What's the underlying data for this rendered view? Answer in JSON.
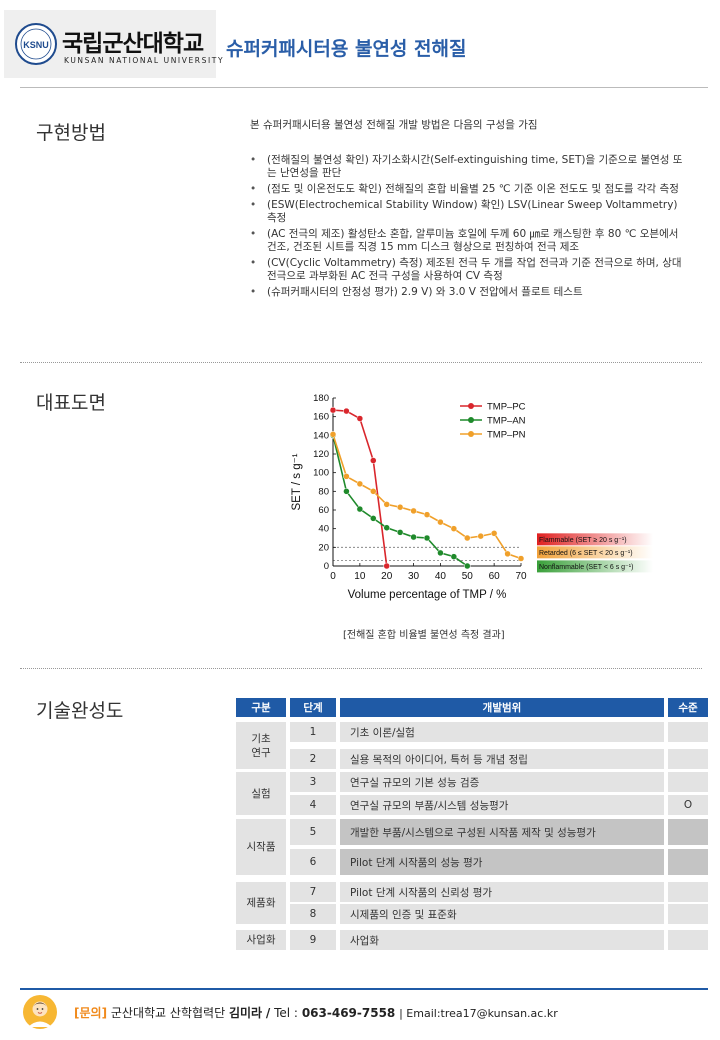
{
  "header": {
    "logo_kr": "국립군산대학교",
    "logo_en": "KUNSAN NATIONAL UNIVERSITY",
    "logo_mark": "KSNU",
    "title": "슈퍼커패시터용 불연성 전해질"
  },
  "method": {
    "label": "구현방법",
    "intro": "본 슈퍼커패시터용 불연성 전해질 개발 방법은 다음의 구성을 가짐",
    "bullets": [
      "(전해질의 불연성 확인) 자기소화시간(Self-extinguishing time, SET)을 기준으로 불연성 또는 난연성을 판단",
      "(점도 및 이온전도도 확인) 전해질의 혼합 비율별 25 ℃ 기준 이온 전도도 및 점도를 각각 측정",
      "(ESW(Electrochemical Stability Window) 확인) LSV(Linear Sweep Voltammetry) 측정",
      "(AC 전극의 제조) 활성탄소 혼합, 알루미늄 호일에 두께 60 ㎛로 캐스팅한 후 80 ℃ 오븐에서 건조, 건조된 시트를 직경 15 mm 디스크 형상으로 펀칭하여 전극 제조",
      "(CV(Cyclic Voltammetry) 측정) 제조된 전극 두 개를 작업 전극과 기준 전극으로 하며, 상대 전극으로 과부화된 AC 전극 구성을 사용하여 CV 측정",
      "(슈퍼커패시터의 안정성 평가) 2.9 V) 와 3.0 V 전압에서 플로트 테스트"
    ]
  },
  "figure": {
    "label": "대표도면",
    "caption": "[전해질 혼합 비율별 불연성 측정 결과]"
  },
  "chart_data": {
    "type": "line",
    "xlabel": "Volume percentage of TMP / %",
    "ylabel": "SET / s g⁻¹",
    "xlim": [
      0,
      70
    ],
    "ylim": [
      0,
      180
    ],
    "xticks": [
      "0",
      "10",
      "20",
      "30",
      "40",
      "50",
      "60",
      "70"
    ],
    "yticks": [
      "0",
      "20",
      "40",
      "60",
      "80",
      "100",
      "120",
      "140",
      "160",
      "180"
    ],
    "legend_position": "top-right",
    "series": [
      {
        "name": "TMP–PC",
        "color": "#d9262c",
        "x": [
          0,
          5,
          10,
          15,
          20
        ],
        "y": [
          167,
          166,
          158,
          113,
          0
        ]
      },
      {
        "name": "TMP–AN",
        "color": "#1f8a2b",
        "x": [
          0,
          5,
          10,
          15,
          20,
          25,
          30,
          35,
          40,
          45,
          50
        ],
        "y": [
          140,
          80,
          61,
          51,
          41,
          36,
          31,
          30,
          14,
          10,
          0
        ]
      },
      {
        "name": "TMP–PN",
        "color": "#f0a02a",
        "x": [
          0,
          5,
          10,
          15,
          20,
          25,
          30,
          35,
          40,
          45,
          50,
          55,
          60,
          65,
          70
        ],
        "y": [
          141,
          96,
          88,
          80,
          66,
          63,
          59,
          55,
          47,
          40,
          30,
          32,
          35,
          13,
          8
        ]
      }
    ],
    "thresholds": [
      20,
      6
    ],
    "bands": [
      {
        "label": "Flammable (SET ≥ 20 s g⁻¹)",
        "color": "#e02020"
      },
      {
        "label": "Retarded (6 ≤ SET < 20 s g⁻¹)",
        "color": "#f2a23a"
      },
      {
        "label": "Nonflammable (SET < 6 s g⁻¹)",
        "color": "#3aa03a"
      }
    ]
  },
  "maturity": {
    "label": "기술완성도",
    "headers": [
      "구분",
      "단계",
      "개발범위",
      "수준"
    ],
    "groups": [
      {
        "name": "기초\n연구",
        "rows": [
          0,
          1
        ]
      },
      {
        "name": "실험",
        "rows": [
          2,
          3
        ]
      },
      {
        "name": "시작품",
        "rows": [
          4,
          5
        ]
      },
      {
        "name": "제품화",
        "rows": [
          6,
          7
        ]
      },
      {
        "name": "사업화",
        "rows": [
          8
        ]
      }
    ],
    "rows": [
      {
        "step": "1",
        "desc": "기초 이론/실험",
        "level": ""
      },
      {
        "step": "2",
        "desc": "실용 목적의 아이디어, 특허 등 개념 정립",
        "level": ""
      },
      {
        "step": "3",
        "desc": "연구실 규모의 기본 성능 검증",
        "level": ""
      },
      {
        "step": "4",
        "desc": "연구실 규모의 부품/시스템 성능평가",
        "level": "O"
      },
      {
        "step": "5",
        "desc": "개발한 부품/시스템으로 구성된 시작품 제작 및 성능평가",
        "level": ""
      },
      {
        "step": "6",
        "desc": "Pilot 단계 시작품의 성능 평가",
        "level": ""
      },
      {
        "step": "7",
        "desc": "Pilot 단계 시작품의 신뢰성 평가",
        "level": ""
      },
      {
        "step": "8",
        "desc": "시제품의 인증 및 표준화",
        "level": ""
      },
      {
        "step": "9",
        "desc": "사업화",
        "level": ""
      }
    ]
  },
  "footer": {
    "ask": "[문의]",
    "org": "군산대학교 산학협력단",
    "name": "김미라",
    "slash": "/",
    "tel_label": "Tel :",
    "phone": "063-469-7558",
    "email": "| Email:trea17@kunsan.ac.kr"
  }
}
